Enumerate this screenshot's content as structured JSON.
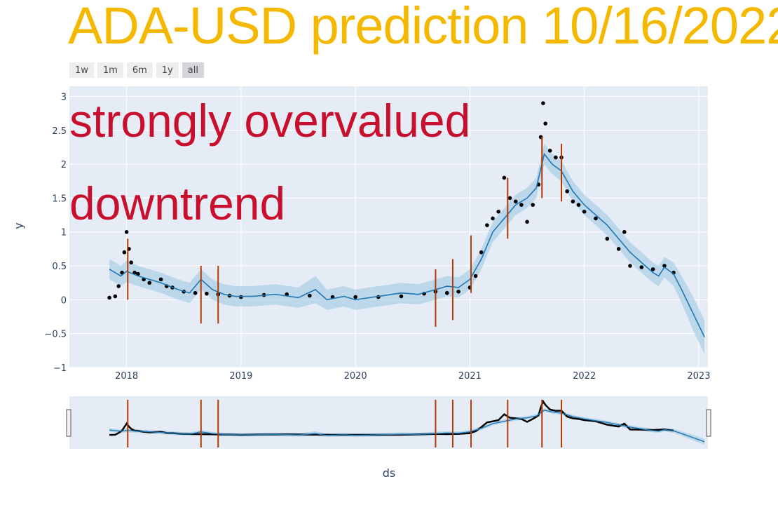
{
  "title": "ADA-USD prediction 10/16/2022",
  "annotations": [
    "strongly overvalued",
    "downtrend"
  ],
  "range_buttons": [
    {
      "label": "1w",
      "active": false
    },
    {
      "label": "1m",
      "active": false
    },
    {
      "label": "6m",
      "active": false
    },
    {
      "label": "1y",
      "active": false
    },
    {
      "label": "all",
      "active": true
    }
  ],
  "colors": {
    "title": "#f5b800",
    "annotation": "#c8102e",
    "plot_bg": "#e5ecf6",
    "actual": "#000000",
    "forecast": "#1f77b4",
    "band": "#9ecae1",
    "changepoint": "#b33a00"
  },
  "chart_data": {
    "type": "line",
    "xlabel": "ds",
    "ylabel": "y",
    "xlim": [
      2017.5,
      2023.08
    ],
    "ylim": [
      -1,
      3.15
    ],
    "x_ticks": [
      2018,
      2019,
      2020,
      2021,
      2022,
      2023
    ],
    "x_tick_labels": [
      "2018",
      "2019",
      "2020",
      "2021",
      "2022",
      "2023"
    ],
    "y_ticks": [
      -1,
      -0.5,
      0,
      0.5,
      1,
      1.5,
      2,
      2.5,
      3
    ],
    "y_tick_labels": [
      "−1",
      "−0.5",
      "0",
      "0.5",
      "1",
      "1.5",
      "2",
      "2.5",
      "3"
    ],
    "grid": true,
    "rangeslider": true,
    "series": [
      {
        "kind": "scatter",
        "x": [
          2017.85,
          2017.9,
          2017.93,
          2017.96,
          2017.98,
          2018.0,
          2018.02,
          2018.04,
          2018.07,
          2018.1,
          2018.15,
          2018.2,
          2018.3,
          2018.35,
          2018.4,
          2018.5,
          2018.6,
          2018.7,
          2018.8,
          2018.9,
          2019.0,
          2019.2,
          2019.4,
          2019.6,
          2019.8,
          2020.0,
          2020.2,
          2020.4,
          2020.6,
          2020.7,
          2020.8,
          2020.9,
          2021.0,
          2021.05,
          2021.1,
          2021.15,
          2021.2,
          2021.25,
          2021.3,
          2021.35,
          2021.4,
          2021.45,
          2021.5,
          2021.55,
          2021.6,
          2021.62,
          2021.64,
          2021.66,
          2021.7,
          2021.75,
          2021.8,
          2021.85,
          2021.9,
          2021.95,
          2022.0,
          2022.1,
          2022.2,
          2022.3,
          2022.35,
          2022.4,
          2022.5,
          2022.6,
          2022.7,
          2022.78
        ],
        "y": [
          0.03,
          0.05,
          0.2,
          0.4,
          0.7,
          1.0,
          0.75,
          0.55,
          0.4,
          0.38,
          0.3,
          0.25,
          0.3,
          0.2,
          0.18,
          0.12,
          0.1,
          0.09,
          0.08,
          0.06,
          0.04,
          0.07,
          0.08,
          0.06,
          0.04,
          0.04,
          0.04,
          0.05,
          0.09,
          0.12,
          0.1,
          0.12,
          0.18,
          0.35,
          0.7,
          1.1,
          1.2,
          1.3,
          1.8,
          1.5,
          1.45,
          1.4,
          1.15,
          1.4,
          1.7,
          2.4,
          2.9,
          2.6,
          2.2,
          2.1,
          2.1,
          1.6,
          1.45,
          1.4,
          1.3,
          1.2,
          0.9,
          0.75,
          1.0,
          0.5,
          0.48,
          0.45,
          0.5,
          0.4
        ]
      },
      {
        "kind": "forecast",
        "x": [
          2017.85,
          2017.95,
          2018.0,
          2018.1,
          2018.2,
          2018.3,
          2018.45,
          2018.55,
          2018.65,
          2018.75,
          2018.85,
          2018.95,
          2019.1,
          2019.3,
          2019.5,
          2019.65,
          2019.75,
          2019.9,
          2020.0,
          2020.2,
          2020.4,
          2020.55,
          2020.7,
          2020.8,
          2020.9,
          2021.0,
          2021.1,
          2021.2,
          2021.3,
          2021.4,
          2021.5,
          2021.58,
          2021.65,
          2021.72,
          2021.8,
          2021.9,
          2022.0,
          2022.1,
          2022.2,
          2022.3,
          2022.4,
          2022.5,
          2022.6,
          2022.65,
          2022.7,
          2022.78,
          2022.85,
          2022.95,
          2023.05
        ],
        "y": [
          0.45,
          0.35,
          0.42,
          0.35,
          0.3,
          0.25,
          0.15,
          0.1,
          0.3,
          0.15,
          0.08,
          0.05,
          0.05,
          0.08,
          0.03,
          0.15,
          0.0,
          0.05,
          0.0,
          0.05,
          0.1,
          0.08,
          0.15,
          0.2,
          0.18,
          0.3,
          0.6,
          1.0,
          1.2,
          1.4,
          1.5,
          1.65,
          2.15,
          2.0,
          1.9,
          1.6,
          1.4,
          1.25,
          1.1,
          0.9,
          0.7,
          0.55,
          0.4,
          0.35,
          0.48,
          0.38,
          0.15,
          -0.2,
          -0.55
        ],
        "upper": [
          0.6,
          0.5,
          0.58,
          0.5,
          0.45,
          0.4,
          0.3,
          0.25,
          0.45,
          0.3,
          0.23,
          0.2,
          0.2,
          0.23,
          0.18,
          0.35,
          0.15,
          0.2,
          0.15,
          0.2,
          0.25,
          0.23,
          0.3,
          0.35,
          0.33,
          0.45,
          0.75,
          1.15,
          1.35,
          1.55,
          1.65,
          1.8,
          2.3,
          2.15,
          2.05,
          1.75,
          1.55,
          1.4,
          1.25,
          1.05,
          0.85,
          0.7,
          0.55,
          0.5,
          0.63,
          0.55,
          0.35,
          0.05,
          -0.3
        ],
        "lower": [
          0.3,
          0.2,
          0.26,
          0.2,
          0.15,
          0.1,
          0.0,
          -0.05,
          0.15,
          0.0,
          -0.07,
          -0.1,
          -0.1,
          -0.07,
          -0.12,
          -0.05,
          -0.15,
          -0.1,
          -0.15,
          -0.1,
          -0.05,
          -0.07,
          0.0,
          0.05,
          0.03,
          0.15,
          0.45,
          0.85,
          1.05,
          1.25,
          1.35,
          1.5,
          2.0,
          1.85,
          1.75,
          1.45,
          1.25,
          1.1,
          0.95,
          0.75,
          0.55,
          0.4,
          0.25,
          0.2,
          0.33,
          0.2,
          -0.05,
          -0.45,
          -0.8
        ]
      }
    ],
    "changepoints": [
      {
        "x": 2018.01,
        "y0": 0.0,
        "y1": 0.9
      },
      {
        "x": 2018.65,
        "y0": -0.35,
        "y1": 0.5
      },
      {
        "x": 2018.8,
        "y0": -0.35,
        "y1": 0.5
      },
      {
        "x": 2020.7,
        "y0": -0.4,
        "y1": 0.45
      },
      {
        "x": 2020.85,
        "y0": -0.3,
        "y1": 0.6
      },
      {
        "x": 2021.01,
        "y0": 0.1,
        "y1": 0.95
      },
      {
        "x": 2021.33,
        "y0": 0.9,
        "y1": 1.8
      },
      {
        "x": 2021.63,
        "y0": 1.5,
        "y1": 2.4
      },
      {
        "x": 2021.8,
        "y0": 1.45,
        "y1": 2.3
      }
    ]
  }
}
